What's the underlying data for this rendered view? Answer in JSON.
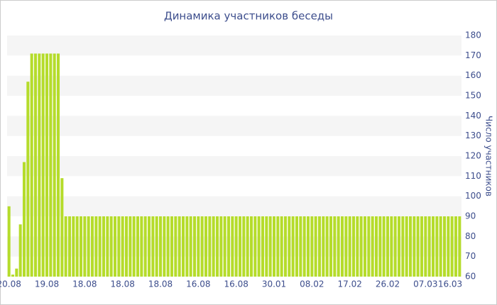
{
  "chart_data": {
    "type": "bar",
    "title": "Динамика участников беседы",
    "ylabel": "Число участников",
    "categories": [
      "20.08",
      null,
      null,
      null,
      null,
      null,
      null,
      null,
      null,
      null,
      "19.08",
      null,
      null,
      null,
      null,
      null,
      null,
      null,
      null,
      null,
      "18.08",
      null,
      null,
      null,
      null,
      null,
      null,
      null,
      null,
      null,
      "18.08",
      null,
      null,
      null,
      null,
      null,
      null,
      null,
      null,
      null,
      "18.08",
      null,
      null,
      null,
      null,
      null,
      null,
      null,
      null,
      null,
      "16.08",
      null,
      null,
      null,
      null,
      null,
      null,
      null,
      null,
      null,
      "16.08",
      null,
      null,
      null,
      null,
      null,
      null,
      null,
      null,
      null,
      "30.01",
      null,
      null,
      null,
      null,
      null,
      null,
      null,
      null,
      null,
      "08.02",
      null,
      null,
      null,
      null,
      null,
      null,
      null,
      null,
      null,
      "17.02",
      null,
      null,
      null,
      null,
      null,
      null,
      null,
      null,
      null,
      "26.02",
      null,
      null,
      null,
      null,
      null,
      null,
      null,
      null,
      null,
      "07.03",
      null,
      null,
      null,
      null,
      null,
      null,
      null,
      null,
      "16.03"
    ],
    "values": [
      95,
      61,
      64,
      86,
      117,
      157,
      171,
      171,
      171,
      171,
      171,
      171,
      171,
      171,
      109,
      90,
      90,
      90,
      90,
      90,
      90,
      90,
      90,
      90,
      90,
      90,
      90,
      90,
      90,
      90,
      90,
      90,
      90,
      90,
      90,
      90,
      90,
      90,
      90,
      90,
      90,
      90,
      90,
      90,
      90,
      90,
      90,
      90,
      90,
      90,
      90,
      90,
      90,
      90,
      90,
      90,
      90,
      90,
      90,
      90,
      90,
      90,
      90,
      90,
      90,
      90,
      90,
      90,
      90,
      90,
      90,
      90,
      90,
      90,
      90,
      90,
      90,
      90,
      90,
      90,
      90,
      90,
      90,
      90,
      90,
      90,
      90,
      90,
      90,
      90,
      90,
      90,
      90,
      90,
      90,
      90,
      90,
      90,
      90,
      90,
      90,
      90,
      90,
      90,
      90,
      90,
      90,
      90,
      90,
      90,
      90,
      90,
      90,
      90,
      90,
      90,
      90,
      90,
      90,
      90
    ],
    "color": "#b5dc2b",
    "ylim": [
      60,
      180
    ],
    "yticks": [
      60,
      70,
      80,
      90,
      100,
      110,
      120,
      130,
      140,
      150,
      160,
      170,
      180
    ],
    "y_axis_side": "right",
    "bands": true
  }
}
